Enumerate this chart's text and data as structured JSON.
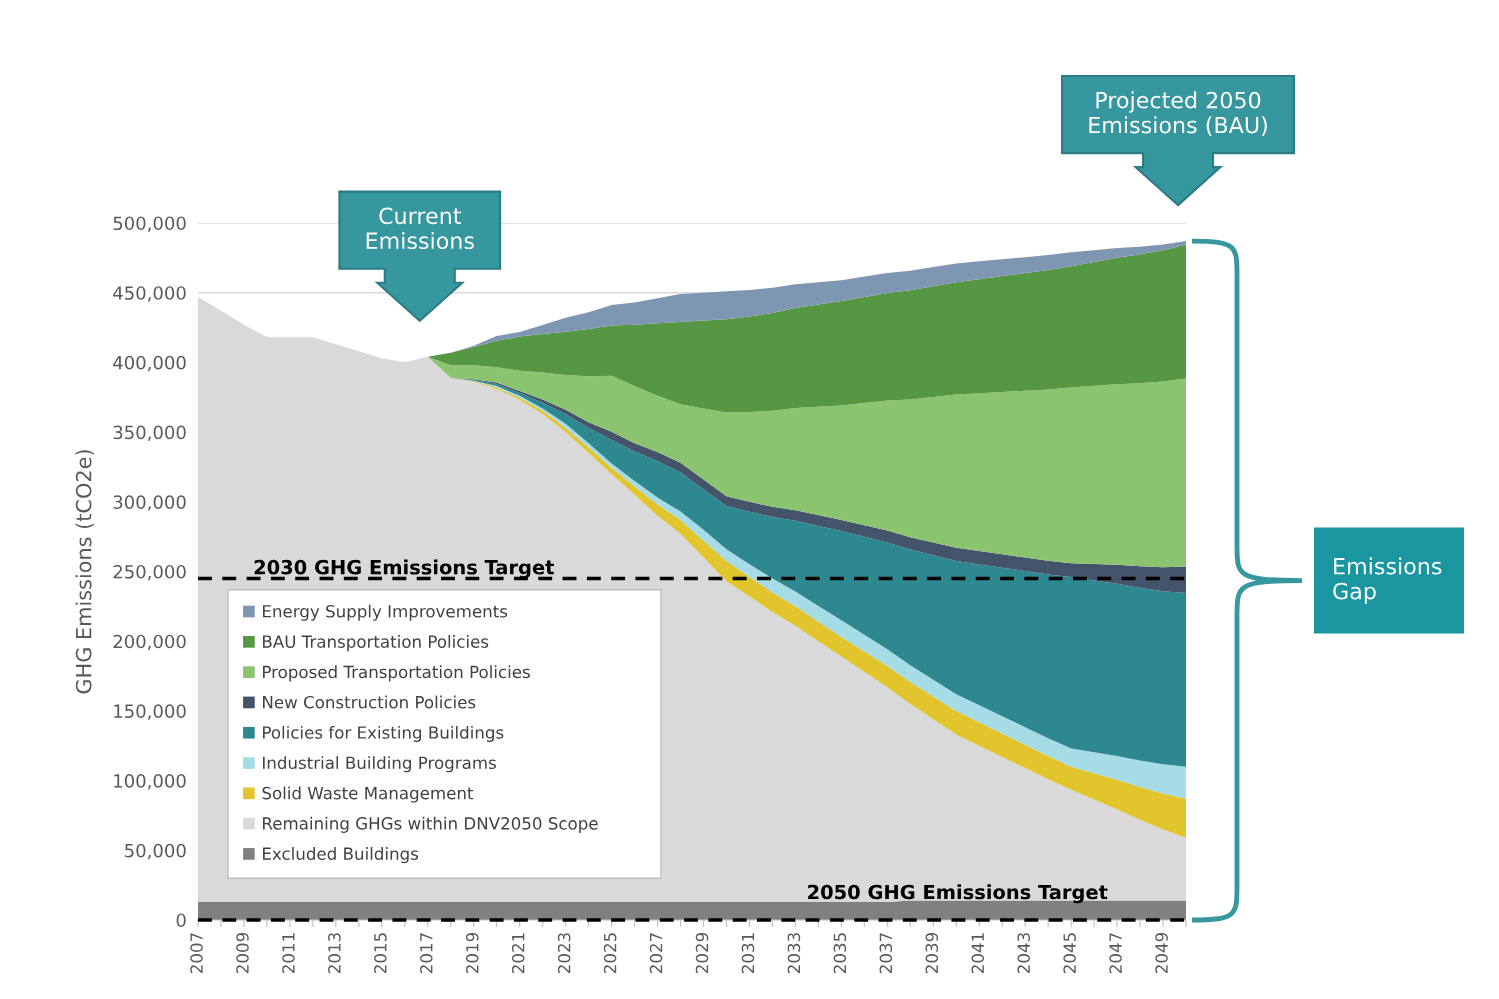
{
  "chart_data": {
    "type": "area",
    "stacked": true,
    "ylabel": "GHG Emissions (tCO2e)",
    "categories": [
      "2007",
      null,
      "2009",
      null,
      "2011",
      null,
      "2013",
      null,
      "2015",
      null,
      "2017",
      null,
      "2019",
      null,
      "2021",
      null,
      "2023",
      null,
      "2025",
      null,
      "2027",
      null,
      "2029",
      null,
      "2031",
      null,
      "2033",
      null,
      "2035",
      null,
      "2037",
      null,
      "2039",
      null,
      "2041",
      null,
      "2043",
      null,
      "2045",
      null,
      "2047",
      null,
      "2049",
      null
    ],
    "series": [
      {
        "name": "Excluded Buildings",
        "color": "#808080",
        "values": [
          13000,
          13000,
          13000,
          13000,
          13000,
          13000,
          13000,
          13000,
          13000,
          13000,
          13000,
          13000,
          13000,
          13000,
          13000,
          13000,
          13000,
          13000,
          13000,
          13000,
          13000,
          13000,
          13000,
          13000,
          13000,
          13000,
          13000,
          13000,
          13000,
          13000,
          13000,
          14000,
          14000,
          14000,
          14000,
          14000,
          14000,
          14000,
          14000,
          14000,
          14000,
          14000,
          14000,
          14000
        ]
      },
      {
        "name": "Remaining GHGs within DNV2050 Scope",
        "color": "#d9d9d9",
        "values": [
          434000,
          424000,
          414000,
          405000,
          405000,
          405000,
          400000,
          395000,
          390000,
          387000,
          391000,
          376000,
          373000,
          368000,
          360000,
          350000,
          337000,
          322000,
          307000,
          292000,
          277000,
          264000,
          247000,
          230000,
          219000,
          208000,
          198000,
          187000,
          176000,
          165000,
          154000,
          141000,
          130000,
          119000,
          111000,
          103000,
          95000,
          87000,
          79500,
          72500,
          65500,
          58000,
          51000,
          45000
        ]
      },
      {
        "name": "Solid Waste Management",
        "color": "#e2c42c",
        "values": [
          0,
          0,
          0,
          0,
          0,
          0,
          0,
          0,
          0,
          0,
          0,
          0,
          500,
          1000,
          1700,
          2300,
          3000,
          4000,
          4500,
          6000,
          8000,
          10000,
          12000,
          14500,
          14000,
          14000,
          14000,
          14000,
          14000,
          14600,
          15200,
          15800,
          16400,
          17000,
          16900,
          16800,
          16700,
          16600,
          16500,
          18800,
          21100,
          23400,
          25700,
          28000
        ]
      },
      {
        "name": "Industrial Building Programs",
        "color": "#a6dce5",
        "values": [
          0,
          0,
          0,
          0,
          0,
          0,
          0,
          0,
          0,
          0,
          0,
          0,
          300,
          1000,
          1300,
          1600,
          3000,
          3000,
          3000,
          4000,
          5000,
          6000,
          8000,
          8500,
          9200,
          9900,
          10600,
          11300,
          12000,
          12000,
          12000,
          12000,
          12000,
          12000,
          12200,
          12400,
          12600,
          12800,
          13000,
          15000,
          17000,
          19000,
          21000,
          23000
        ]
      },
      {
        "name": "Policies for Existing Buildings",
        "color": "#2d8890",
        "values": [
          0,
          0,
          0,
          0,
          0,
          0,
          0,
          0,
          0,
          0,
          0,
          0,
          700,
          1500,
          2000,
          4200,
          7000,
          11000,
          16800,
          21000,
          26000,
          28000,
          29000,
          31000,
          37600,
          44200,
          50800,
          57400,
          64000,
          70300,
          76600,
          82900,
          89200,
          95500,
          101000,
          106500,
          112000,
          117500,
          123000,
          123300,
          123600,
          123900,
          124200,
          124500
        ]
      },
      {
        "name": "New Construction Policies",
        "color": "#44546a",
        "values": [
          0,
          0,
          0,
          0,
          0,
          0,
          0,
          0,
          0,
          0,
          0,
          0,
          500,
          1000,
          1500,
          2200,
          3000,
          4000,
          5900,
          6000,
          6700,
          7000,
          7000,
          7000,
          7200,
          7400,
          7600,
          7800,
          8000,
          8300,
          8600,
          8900,
          9200,
          9500,
          9600,
          9700,
          9800,
          9900,
          10000,
          11800,
          13600,
          15400,
          17200,
          19000
        ]
      },
      {
        "name": "Proposed Transportation Policies",
        "color": "#8ac46f",
        "values": [
          0,
          0,
          0,
          0,
          0,
          0,
          0,
          0,
          0,
          0,
          0,
          9000,
          10000,
          11000,
          14500,
          19500,
          25000,
          33000,
          40300,
          41000,
          40300,
          42000,
          51000,
          60000,
          64400,
          68800,
          73200,
          77600,
          82000,
          87600,
          93200,
          98800,
          104400,
          110000,
          113200,
          116400,
          119600,
          122800,
          126000,
          127800,
          129600,
          131400,
          133200,
          135000
        ]
      },
      {
        "name": "BAU Transportation Policies",
        "color": "#559742",
        "values": [
          0,
          0,
          0,
          0,
          0,
          0,
          0,
          0,
          0,
          0,
          0,
          9000,
          13000,
          19000,
          24500,
          27500,
          31000,
          34000,
          36000,
          44000,
          52000,
          59000,
          63000,
          67000,
          68600,
          70200,
          71800,
          73400,
          75000,
          76100,
          77200,
          78300,
          79400,
          80500,
          81800,
          83100,
          84400,
          85700,
          87000,
          88800,
          90600,
          92400,
          94200,
          96000
        ]
      },
      {
        "name": "Energy Supply Improvements",
        "color": "#7f96b2",
        "values": [
          0,
          0,
          0,
          0,
          0,
          0,
          0,
          0,
          0,
          0,
          0,
          0,
          1000,
          3500,
          3300,
          6600,
          10000,
          12000,
          14600,
          16000,
          18000,
          20000,
          20000,
          20000,
          19000,
          18000,
          17000,
          16000,
          15000,
          14700,
          14400,
          14100,
          13800,
          13500,
          12800,
          12100,
          11400,
          10700,
          10000,
          8500,
          7000,
          5500,
          4000,
          2500
        ]
      }
    ],
    "ylim": [
      0,
      500000
    ],
    "yticks": [
      {
        "value": 0,
        "label": "0"
      },
      {
        "value": 50000,
        "label": "50,000"
      },
      {
        "value": 100000,
        "label": "100,000"
      },
      {
        "value": 150000,
        "label": "150,000"
      },
      {
        "value": 200000,
        "label": "200,000"
      },
      {
        "value": 250000,
        "label": "250,000"
      },
      {
        "value": 300000,
        "label": "300,000"
      },
      {
        "value": 350000,
        "label": "350,000"
      },
      {
        "value": 400000,
        "label": "400,000"
      },
      {
        "value": 450000,
        "label": "450,000"
      },
      {
        "value": 500000,
        "label": "500,000"
      }
    ],
    "ref_lines": [
      {
        "axis": "y",
        "value": 245000,
        "label": "2030 GHG Emissions Target",
        "color": "#000000",
        "line_style": "dashed"
      },
      {
        "axis": "y",
        "value": 0,
        "label": "2050 GHG Emissions Target",
        "color": "#000000",
        "line_style": "dashed"
      }
    ],
    "annotations": [
      "Current\nEmissions",
      "Projected 2050\nEmissions (BAU)",
      "Emissions Gap"
    ],
    "grid": "y",
    "legend": "bottom left"
  }
}
